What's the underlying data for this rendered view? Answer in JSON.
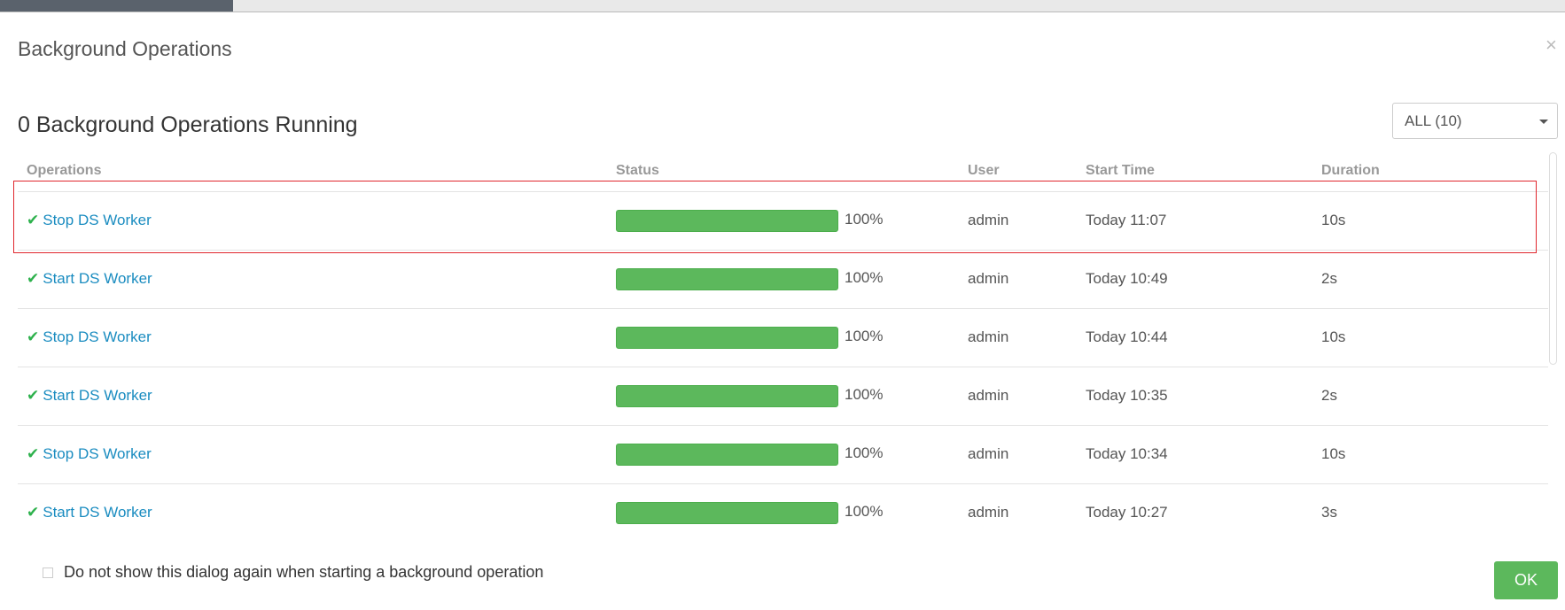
{
  "header": {
    "title": "Background Operations",
    "close": "×"
  },
  "summary": "0 Background Operations Running",
  "filter": "ALL (10)",
  "table": {
    "columns": [
      "Operations",
      "Status",
      "User",
      "Start Time",
      "Duration"
    ],
    "rows": [
      [
        "Stop DS Worker",
        "100%",
        "admin",
        "Today 11:07",
        "10s"
      ],
      [
        "Start DS Worker",
        "100%",
        "admin",
        "Today 10:49",
        "2s"
      ],
      [
        "Stop DS Worker",
        "100%",
        "admin",
        "Today 10:44",
        "10s"
      ],
      [
        "Start DS Worker",
        "100%",
        "admin",
        "Today 10:35",
        "2s"
      ],
      [
        "Stop DS Worker",
        "100%",
        "admin",
        "Today 10:34",
        "10s"
      ],
      [
        "Start DS Worker",
        "100%",
        "admin",
        "Today 10:27",
        "3s"
      ]
    ]
  },
  "footer": {
    "checkbox_label": "Do not show this dialog again when starting a background operation",
    "button": "OK"
  }
}
